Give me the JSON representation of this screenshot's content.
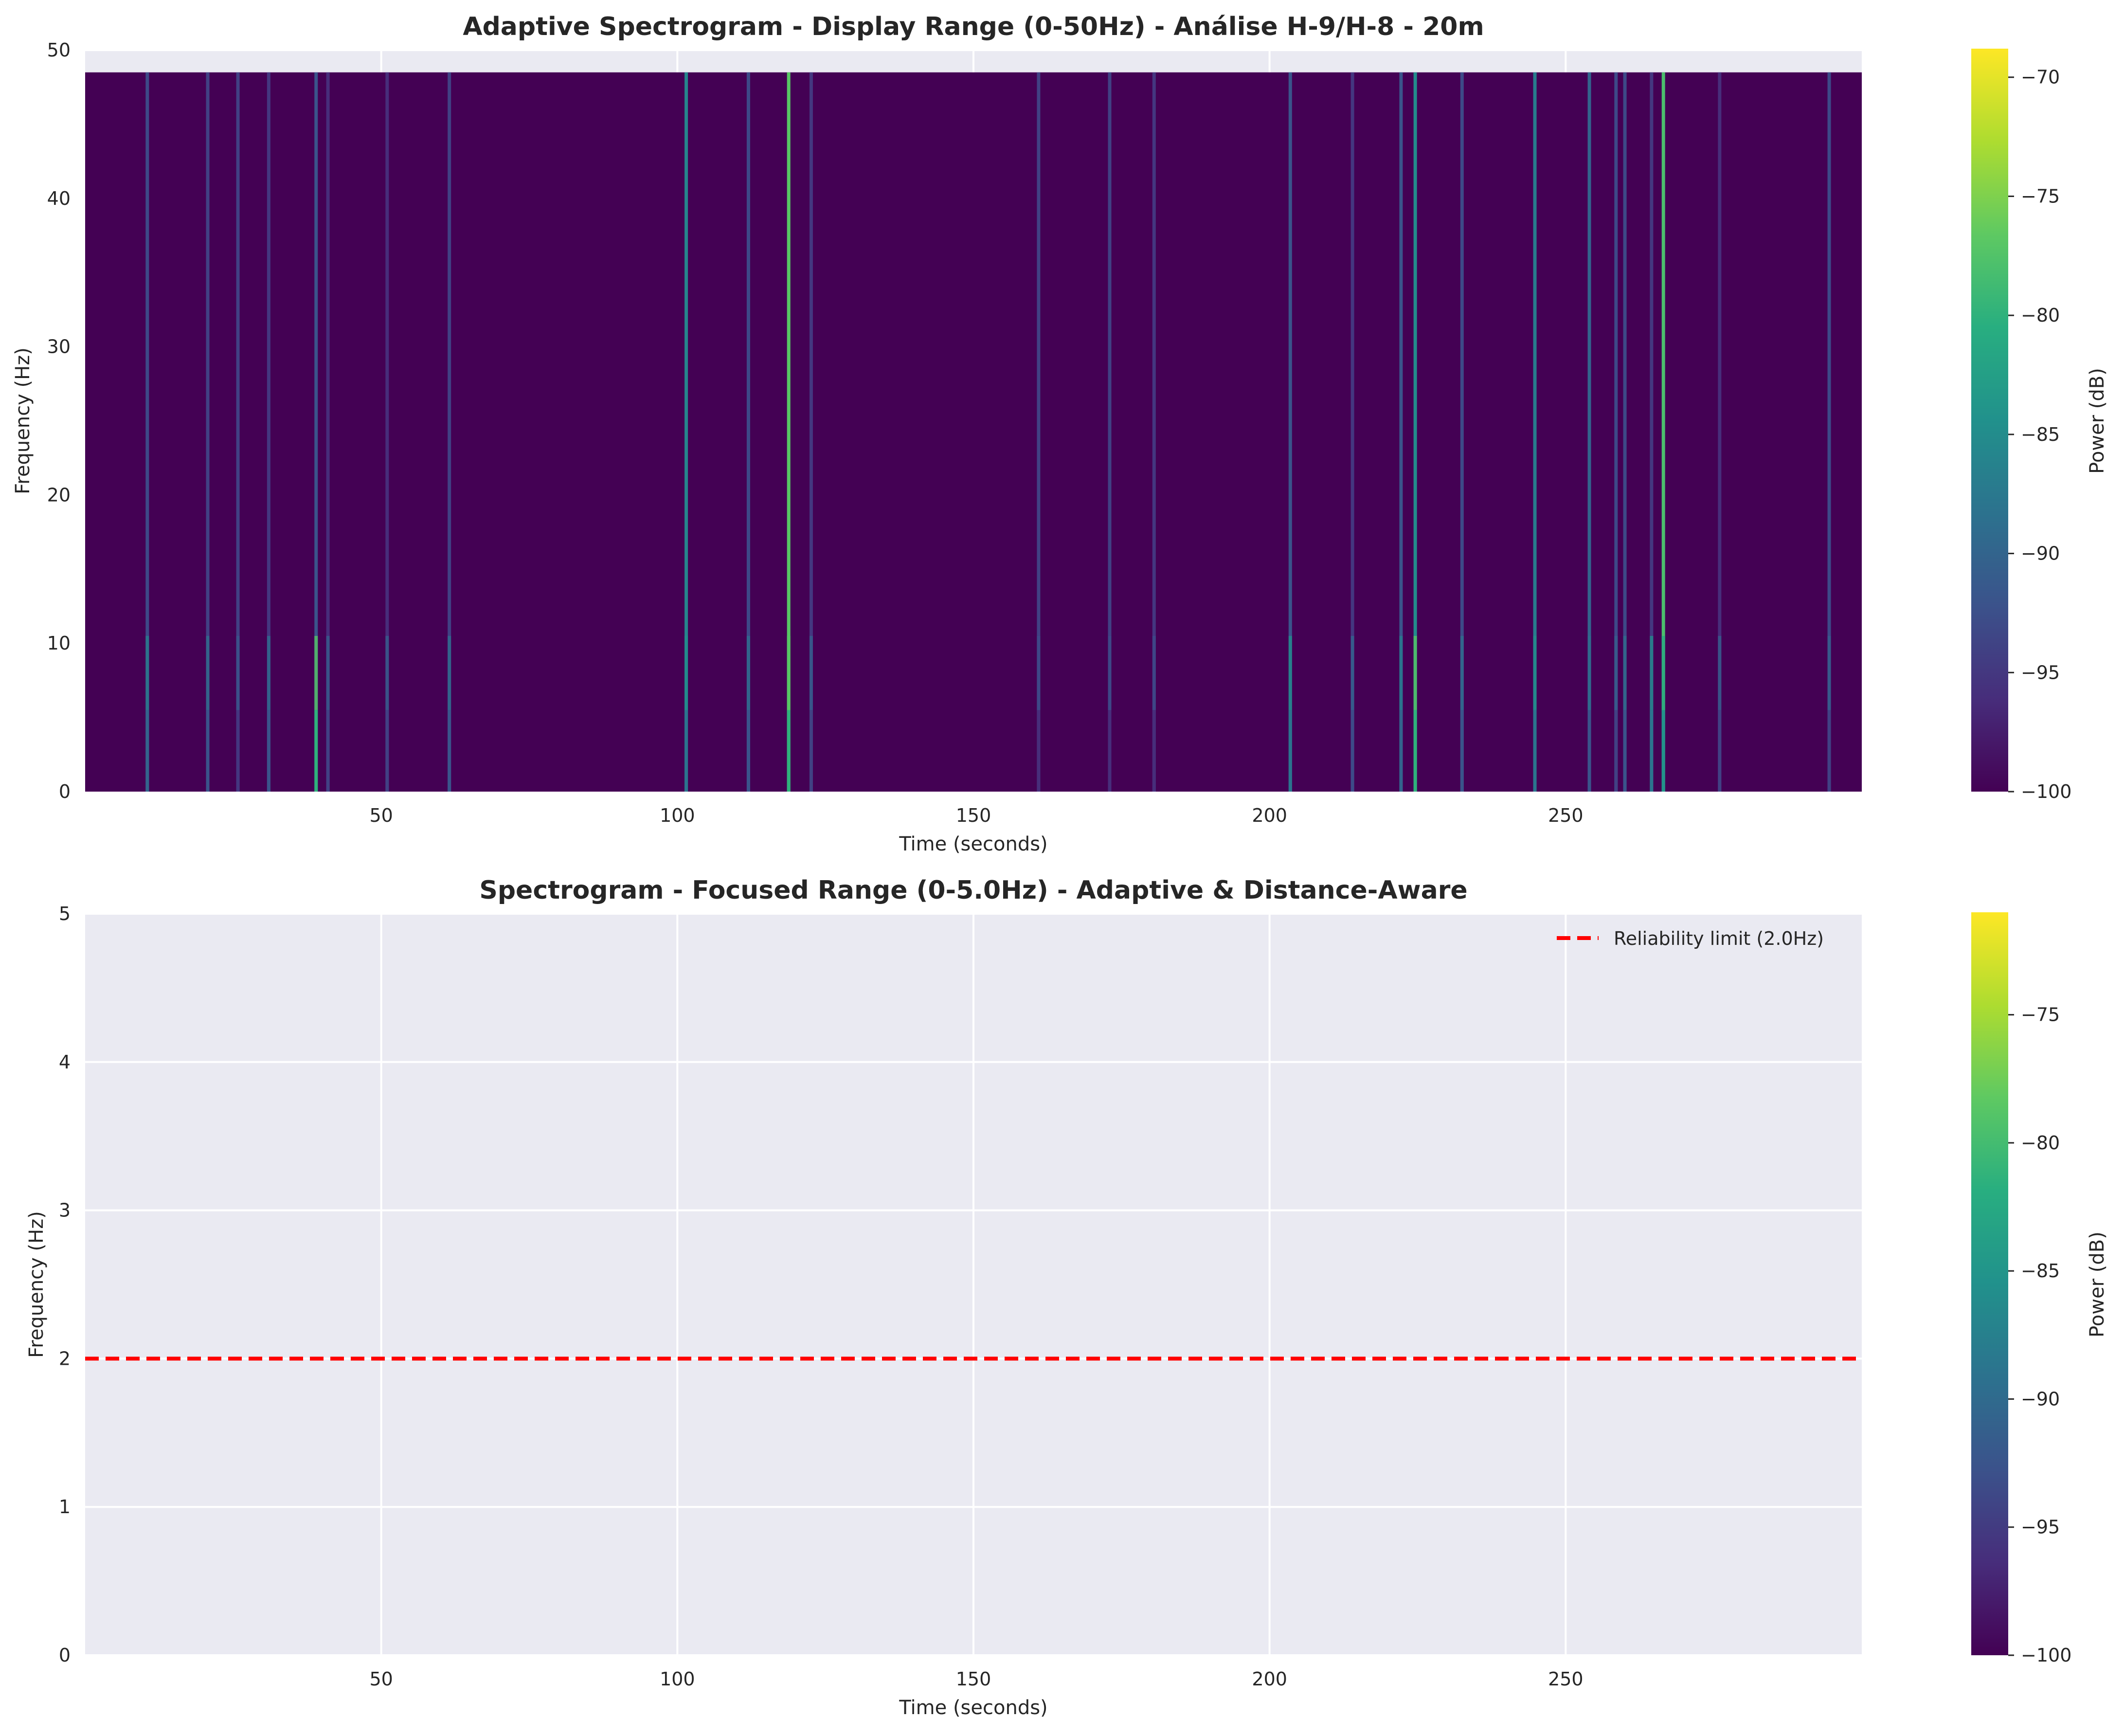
{
  "chart_data": [
    {
      "type": "heatmap",
      "title": "Adaptive Spectrogram - Display Range (0-50Hz) - Análise H-9/H-8 - 20m",
      "xlabel": "Time (seconds)",
      "ylabel": "Frequency (Hz)",
      "xlim": [
        0,
        300
      ],
      "ylim": [
        0,
        50
      ],
      "xticks": [
        "50",
        "100",
        "150",
        "200",
        "250"
      ],
      "yticks": [
        "0",
        "10",
        "20",
        "30",
        "40",
        "50"
      ],
      "data_extent": {
        "time": [
          0,
          300
        ],
        "frequency": [
          0,
          48.5
        ]
      },
      "background_power_db": -100,
      "colormap": "viridis",
      "grid": true,
      "colorbar": {
        "label": "Power (dB)",
        "range": [
          -100,
          -68.8
        ],
        "ticks": [
          "−70",
          "−75",
          "−80",
          "−85",
          "−90",
          "−95",
          "−100"
        ]
      },
      "events": [
        {
          "time": 10.5,
          "power_db": -93,
          "low_band_power_db": -90
        },
        {
          "time": 20.7,
          "power_db": -94,
          "low_band_power_db": -92
        },
        {
          "time": 25.8,
          "power_db": -94,
          "low_band_power_db": -95
        },
        {
          "time": 31,
          "power_db": -95,
          "low_band_power_db": -92
        },
        {
          "time": 39,
          "power_db": -92,
          "low_band_power_db": -80
        },
        {
          "time": 41,
          "power_db": -96,
          "low_band_power_db": -94
        },
        {
          "time": 51,
          "power_db": -96,
          "low_band_power_db": -94
        },
        {
          "time": 61.5,
          "power_db": -94,
          "low_band_power_db": -92
        },
        {
          "time": 101.5,
          "power_db": -86,
          "low_band_power_db": -88
        },
        {
          "time": 112,
          "power_db": -93,
          "low_band_power_db": -92
        },
        {
          "time": 118.8,
          "power_db": -77,
          "low_band_power_db": -80
        },
        {
          "time": 122.6,
          "power_db": -95,
          "low_band_power_db": -94
        },
        {
          "time": 161,
          "power_db": -94,
          "low_band_power_db": -96
        },
        {
          "time": 173,
          "power_db": -94,
          "low_band_power_db": -96
        },
        {
          "time": 180.5,
          "power_db": -95,
          "low_band_power_db": -96
        },
        {
          "time": 203.5,
          "power_db": -92,
          "low_band_power_db": -88
        },
        {
          "time": 214,
          "power_db": -95,
          "low_band_power_db": -93
        },
        {
          "time": 222.2,
          "power_db": -92,
          "low_band_power_db": -90
        },
        {
          "time": 224.6,
          "power_db": -85,
          "low_band_power_db": -80
        },
        {
          "time": 232.5,
          "power_db": -93,
          "low_band_power_db": -92
        },
        {
          "time": 244.8,
          "power_db": -87,
          "low_band_power_db": -88
        },
        {
          "time": 254,
          "power_db": -90,
          "low_band_power_db": -92
        },
        {
          "time": 258.5,
          "power_db": -93,
          "low_band_power_db": -94
        },
        {
          "time": 260,
          "power_db": -93,
          "low_band_power_db": -92
        },
        {
          "time": 264.5,
          "power_db": -95,
          "low_band_power_db": -88
        },
        {
          "time": 266.5,
          "power_db": -78,
          "low_band_power_db": -84
        },
        {
          "time": 276,
          "power_db": -96,
          "low_band_power_db": -94
        },
        {
          "time": 294.5,
          "power_db": -93,
          "low_band_power_db": -94
        }
      ]
    },
    {
      "type": "line",
      "title": "Spectrogram - Focused Range (0-5.0Hz) - Adaptive & Distance-Aware",
      "xlabel": "Time (seconds)",
      "ylabel": "Frequency (Hz)",
      "xlim": [
        0,
        300
      ],
      "ylim": [
        0,
        5
      ],
      "xticks": [
        "50",
        "100",
        "150",
        "200",
        "250"
      ],
      "yticks": [
        "0",
        "1",
        "2",
        "3",
        "4",
        "5"
      ],
      "grid": true,
      "series": [
        {
          "name": "Reliability limit (2.0Hz)",
          "value": 2.0,
          "style": "dashed",
          "color": "#ff0000"
        }
      ],
      "legend_position": "top-right",
      "colormap": "viridis",
      "colorbar": {
        "label": "Power (dB)",
        "range": [
          -100,
          -71
        ],
        "ticks": [
          "−75",
          "−80",
          "−85",
          "−90",
          "−95",
          "−100"
        ]
      }
    }
  ]
}
